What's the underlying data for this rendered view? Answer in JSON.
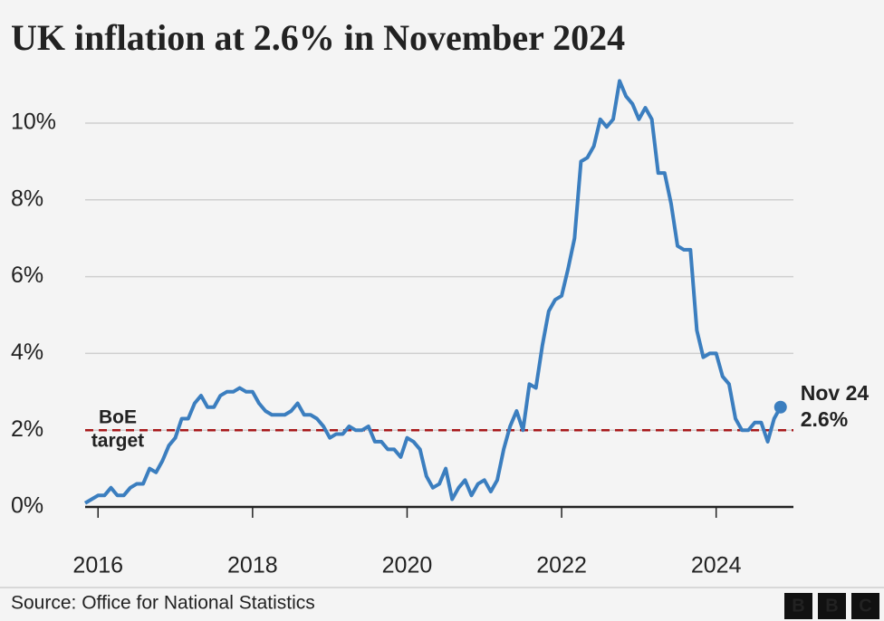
{
  "chart_data": {
    "type": "line",
    "title": "UK inflation at 2.6% in November 2024",
    "source": "Source: Office for National Statistics",
    "logo": [
      "B",
      "B",
      "C"
    ],
    "x": [
      2015.833,
      2015.917,
      2016,
      2016.083,
      2016.167,
      2016.25,
      2016.333,
      2016.417,
      2016.5,
      2016.583,
      2016.667,
      2016.75,
      2016.833,
      2016.917,
      2017,
      2017.083,
      2017.167,
      2017.25,
      2017.333,
      2017.417,
      2017.5,
      2017.583,
      2017.667,
      2017.75,
      2017.833,
      2017.917,
      2018,
      2018.083,
      2018.167,
      2018.25,
      2018.333,
      2018.417,
      2018.5,
      2018.583,
      2018.667,
      2018.75,
      2018.833,
      2018.917,
      2019,
      2019.083,
      2019.167,
      2019.25,
      2019.333,
      2019.417,
      2019.5,
      2019.583,
      2019.667,
      2019.75,
      2019.833,
      2019.917,
      2020,
      2020.083,
      2020.167,
      2020.25,
      2020.333,
      2020.417,
      2020.5,
      2020.583,
      2020.667,
      2020.75,
      2020.833,
      2020.917,
      2021,
      2021.083,
      2021.167,
      2021.25,
      2021.333,
      2021.417,
      2021.5,
      2021.583,
      2021.667,
      2021.75,
      2021.833,
      2021.917,
      2022,
      2022.083,
      2022.167,
      2022.25,
      2022.333,
      2022.417,
      2022.5,
      2022.583,
      2022.667,
      2022.75,
      2022.833,
      2022.917,
      2023,
      2023.083,
      2023.167,
      2023.25,
      2023.333,
      2023.417,
      2023.5,
      2023.583,
      2023.667,
      2023.75,
      2023.833,
      2023.917,
      2024,
      2024.083,
      2024.167,
      2024.25,
      2024.333,
      2024.417,
      2024.5,
      2024.583,
      2024.667,
      2024.75,
      2024.833
    ],
    "series": [
      {
        "color": "#3b7ebf",
        "values": [
          0.1,
          0.2,
          0.3,
          0.3,
          0.5,
          0.3,
          0.3,
          0.5,
          0.6,
          0.6,
          1.0,
          0.9,
          1.2,
          1.6,
          1.8,
          2.3,
          2.3,
          2.7,
          2.9,
          2.6,
          2.6,
          2.9,
          3.0,
          3.0,
          3.1,
          3.0,
          3.0,
          2.7,
          2.5,
          2.4,
          2.4,
          2.4,
          2.5,
          2.7,
          2.4,
          2.4,
          2.3,
          2.1,
          1.8,
          1.9,
          1.9,
          2.1,
          2.0,
          2.0,
          2.1,
          1.7,
          1.7,
          1.5,
          1.5,
          1.3,
          1.8,
          1.7,
          1.5,
          0.8,
          0.5,
          0.6,
          1.0,
          0.2,
          0.5,
          0.7,
          0.3,
          0.6,
          0.7,
          0.4,
          0.7,
          1.5,
          2.1,
          2.5,
          2.0,
          3.2,
          3.1,
          4.2,
          5.1,
          5.4,
          5.5,
          6.2,
          7.0,
          9.0,
          9.1,
          9.4,
          10.1,
          9.9,
          10.1,
          11.1,
          10.7,
          10.5,
          10.1,
          10.4,
          10.1,
          8.7,
          8.7,
          7.9,
          6.8,
          6.7,
          6.7,
          4.6,
          3.9,
          4.0,
          4.0,
          3.4,
          3.2,
          2.3,
          2.0,
          2.0,
          2.2,
          2.2,
          1.7,
          2.3,
          2.6
        ]
      }
    ],
    "end_label": [
      "Nov 24",
      "2.6%"
    ],
    "reference_line": {
      "value": 2,
      "label": [
        "BoE",
        "target"
      ],
      "color": "#a8191b"
    },
    "xlim": [
      2015.833,
      2025.0
    ],
    "xticks": [
      2016,
      2018,
      2020,
      2022,
      2024
    ],
    "ylim": [
      0,
      11
    ],
    "yticks": [
      {
        "value": 0,
        "label": "0%"
      },
      {
        "value": 2,
        "label": "2%"
      },
      {
        "value": 4,
        "label": "4%"
      },
      {
        "value": 6,
        "label": "6%"
      },
      {
        "value": 8,
        "label": "8%"
      },
      {
        "value": 10,
        "label": "10%"
      }
    ],
    "grid": true
  }
}
